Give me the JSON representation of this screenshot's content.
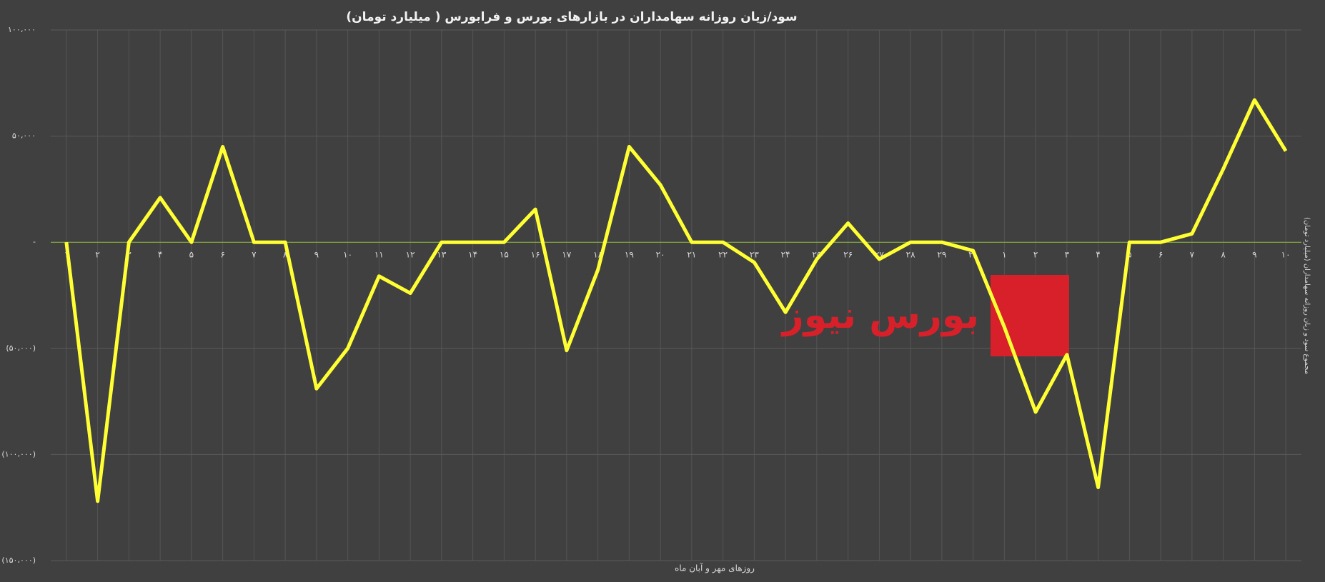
{
  "chart_data": {
    "type": "line",
    "title": "سود/زیان روزانه سهامداران در بازارهای بورس و فرابورس ( میلیارد تومان)",
    "x_label": "روزهای مهر و آبان  ماه",
    "y_label": "مجموع سود و زیان روزانه سهامداران (میلیارد تومان)",
    "watermark": "بورس نیوز",
    "categories": [
      "۱",
      "۲",
      "۳",
      "۴",
      "۵",
      "۶",
      "۷",
      "۸",
      "۹",
      "۱۰",
      "۱۱",
      "۱۲",
      "۱۳",
      "۱۴",
      "۱۵",
      "۱۶",
      "۱۷",
      "۱۸",
      "۱۹",
      "۲۰",
      "۲۱",
      "۲۲",
      "۲۳",
      "۲۴",
      "۲۵",
      "۲۶",
      "۲۷",
      "۲۸",
      "۲۹",
      "۳۰",
      "۱",
      "۲",
      "۳",
      "۴",
      "۵",
      "۶",
      "۷",
      "۸",
      "۹",
      "۱۰"
    ],
    "series": [
      {
        "name": "سود/زیان روزانه",
        "color": "#ffff33",
        "values": [
          0,
          -122000,
          0,
          21000,
          0,
          45000,
          0,
          0,
          -69000,
          -50000,
          -16000,
          -24000,
          0,
          0,
          0,
          15500,
          -51000,
          -13000,
          45000,
          27000,
          0,
          0,
          -9500,
          -33000,
          -8000,
          9000,
          -8000,
          0,
          0,
          -4000,
          -40000,
          -80000,
          -53000,
          -115500,
          0,
          0,
          4000,
          34500,
          67000,
          43000
        ]
      }
    ],
    "ylim": [
      -150000,
      100000
    ],
    "yticks": [
      {
        "value": -150000,
        "label": "(۱۵۰،۰۰۰)"
      },
      {
        "value": -100000,
        "label": "(۱۰۰،۰۰۰)"
      },
      {
        "value": -50000,
        "label": "(۵۰،۰۰۰)"
      },
      {
        "value": 0,
        "label": "-"
      },
      {
        "value": 50000,
        "label": "۵۰،۰۰۰"
      },
      {
        "value": 100000,
        "label": "۱۰۰،۰۰۰"
      }
    ],
    "grid": true
  }
}
